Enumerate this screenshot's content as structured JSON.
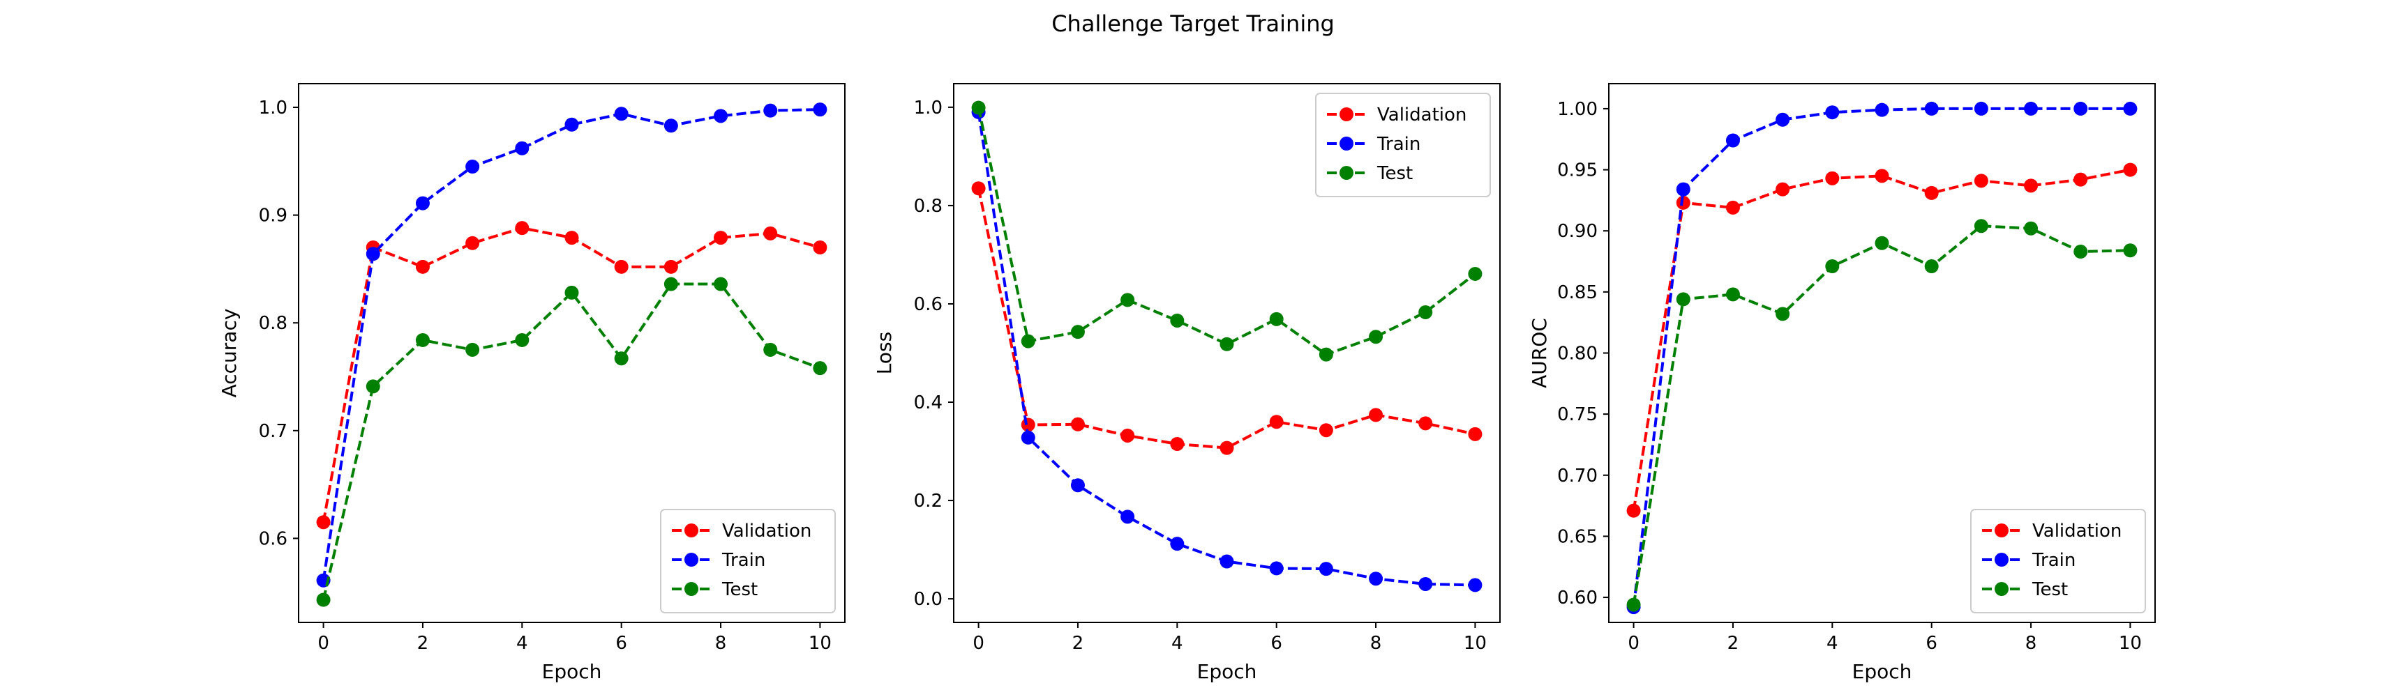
{
  "figure": {
    "title": "Challenge Target Training"
  },
  "colors": {
    "Validation": "#ff0000",
    "Train": "#0000ff",
    "Test": "#008000"
  },
  "chart_data": [
    {
      "type": "line",
      "xlabel": "Epoch",
      "ylabel": "Accuracy",
      "xlim": [
        -0.5,
        10.5
      ],
      "ylim": [
        0.522,
        1.022
      ],
      "xticks": [
        0,
        2,
        4,
        6,
        8,
        10
      ],
      "xtick_labels": [
        "0",
        "2",
        "4",
        "6",
        "8",
        "10"
      ],
      "yticks": [
        0.6,
        0.7,
        0.8,
        0.9,
        1.0
      ],
      "ytick_labels": [
        "0.6",
        "0.7",
        "0.8",
        "0.9",
        "1.0"
      ],
      "legend_position": "lower-right",
      "x": [
        0,
        1,
        2,
        3,
        4,
        5,
        6,
        7,
        8,
        9,
        10
      ],
      "series": [
        {
          "name": "Validation",
          "values": [
            0.615,
            0.87,
            0.852,
            0.874,
            0.888,
            0.879,
            0.852,
            0.852,
            0.879,
            0.883,
            0.87
          ]
        },
        {
          "name": "Train",
          "values": [
            0.561,
            0.864,
            0.911,
            0.945,
            0.962,
            0.984,
            0.994,
            0.983,
            0.992,
            0.997,
            0.998
          ]
        },
        {
          "name": "Test",
          "values": [
            0.543,
            0.741,
            0.784,
            0.775,
            0.784,
            0.828,
            0.767,
            0.836,
            0.836,
            0.775,
            0.758
          ]
        }
      ]
    },
    {
      "type": "line",
      "xlabel": "Epoch",
      "ylabel": "Loss",
      "xlim": [
        -0.5,
        10.5
      ],
      "ylim": [
        -0.048,
        1.048
      ],
      "xticks": [
        0,
        2,
        4,
        6,
        8,
        10
      ],
      "xtick_labels": [
        "0",
        "2",
        "4",
        "6",
        "8",
        "10"
      ],
      "yticks": [
        0.0,
        0.2,
        0.4,
        0.6,
        0.8,
        1.0
      ],
      "ytick_labels": [
        "0.0",
        "0.2",
        "0.4",
        "0.6",
        "0.8",
        "1.0"
      ],
      "legend_position": "upper-right",
      "x": [
        0,
        1,
        2,
        3,
        4,
        5,
        6,
        7,
        8,
        9,
        10
      ],
      "series": [
        {
          "name": "Validation",
          "values": [
            0.835,
            0.354,
            0.355,
            0.332,
            0.315,
            0.307,
            0.36,
            0.343,
            0.374,
            0.357,
            0.335
          ]
        },
        {
          "name": "Train",
          "values": [
            0.99,
            0.328,
            0.231,
            0.167,
            0.112,
            0.076,
            0.062,
            0.061,
            0.041,
            0.03,
            0.028
          ]
        },
        {
          "name": "Test",
          "values": [
            0.999,
            0.524,
            0.543,
            0.608,
            0.566,
            0.518,
            0.569,
            0.497,
            0.533,
            0.583,
            0.661
          ]
        }
      ]
    },
    {
      "type": "line",
      "xlabel": "Epoch",
      "ylabel": "AUROC",
      "xlim": [
        -0.5,
        10.5
      ],
      "ylim": [
        0.5795,
        1.0205
      ],
      "xticks": [
        0,
        2,
        4,
        6,
        8,
        10
      ],
      "xtick_labels": [
        "0",
        "2",
        "4",
        "6",
        "8",
        "10"
      ],
      "yticks": [
        0.6,
        0.65,
        0.7,
        0.75,
        0.8,
        0.85,
        0.9,
        0.95,
        1.0
      ],
      "ytick_labels": [
        "0.60",
        "0.65",
        "0.70",
        "0.75",
        "0.80",
        "0.85",
        "0.90",
        "0.95",
        "1.00"
      ],
      "legend_position": "lower-right",
      "x": [
        0,
        1,
        2,
        3,
        4,
        5,
        6,
        7,
        8,
        9,
        10
      ],
      "series": [
        {
          "name": "Validation",
          "values": [
            0.671,
            0.923,
            0.919,
            0.934,
            0.943,
            0.945,
            0.931,
            0.941,
            0.937,
            0.942,
            0.95
          ]
        },
        {
          "name": "Train",
          "values": [
            0.592,
            0.934,
            0.974,
            0.991,
            0.997,
            0.999,
            1.0,
            1.0,
            1.0,
            1.0,
            1.0
          ]
        },
        {
          "name": "Test",
          "values": [
            0.594,
            0.844,
            0.848,
            0.832,
            0.871,
            0.89,
            0.871,
            0.904,
            0.902,
            0.883,
            0.884
          ]
        }
      ]
    }
  ]
}
